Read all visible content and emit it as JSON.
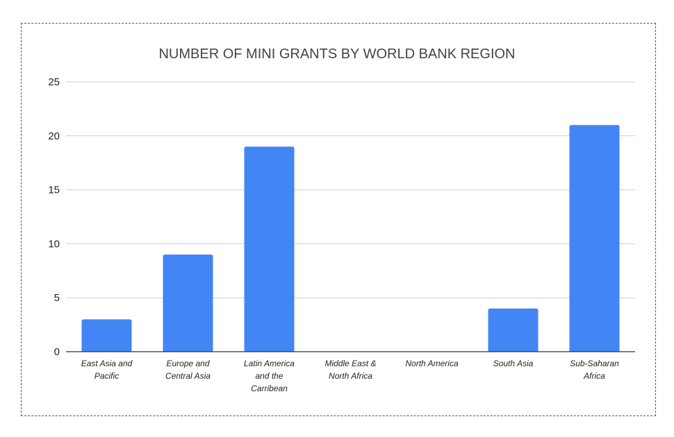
{
  "chart_data": {
    "type": "bar",
    "title": "NUMBER OF MINI GRANTS BY WORLD BANK REGION",
    "xlabel": "",
    "ylabel": "",
    "categories": [
      [
        "East Asia and",
        "Pacific"
      ],
      [
        "Europe and",
        "Central Asia"
      ],
      [
        "Latin America",
        "and the",
        "Carribean"
      ],
      [
        "Middle East &",
        "North Africa"
      ],
      [
        "North America"
      ],
      [
        "South Asia"
      ],
      [
        "Sub-Saharan",
        "Africa"
      ]
    ],
    "values": [
      3,
      9,
      19,
      0,
      0,
      4,
      21
    ],
    "ylim": [
      0,
      25
    ],
    "yticks": [
      0,
      5,
      10,
      15,
      20,
      25
    ],
    "grid": true,
    "legend": "none",
    "colors": {
      "bar": "#4285f4",
      "grid": "#cccccc",
      "axis": "#333333"
    }
  }
}
